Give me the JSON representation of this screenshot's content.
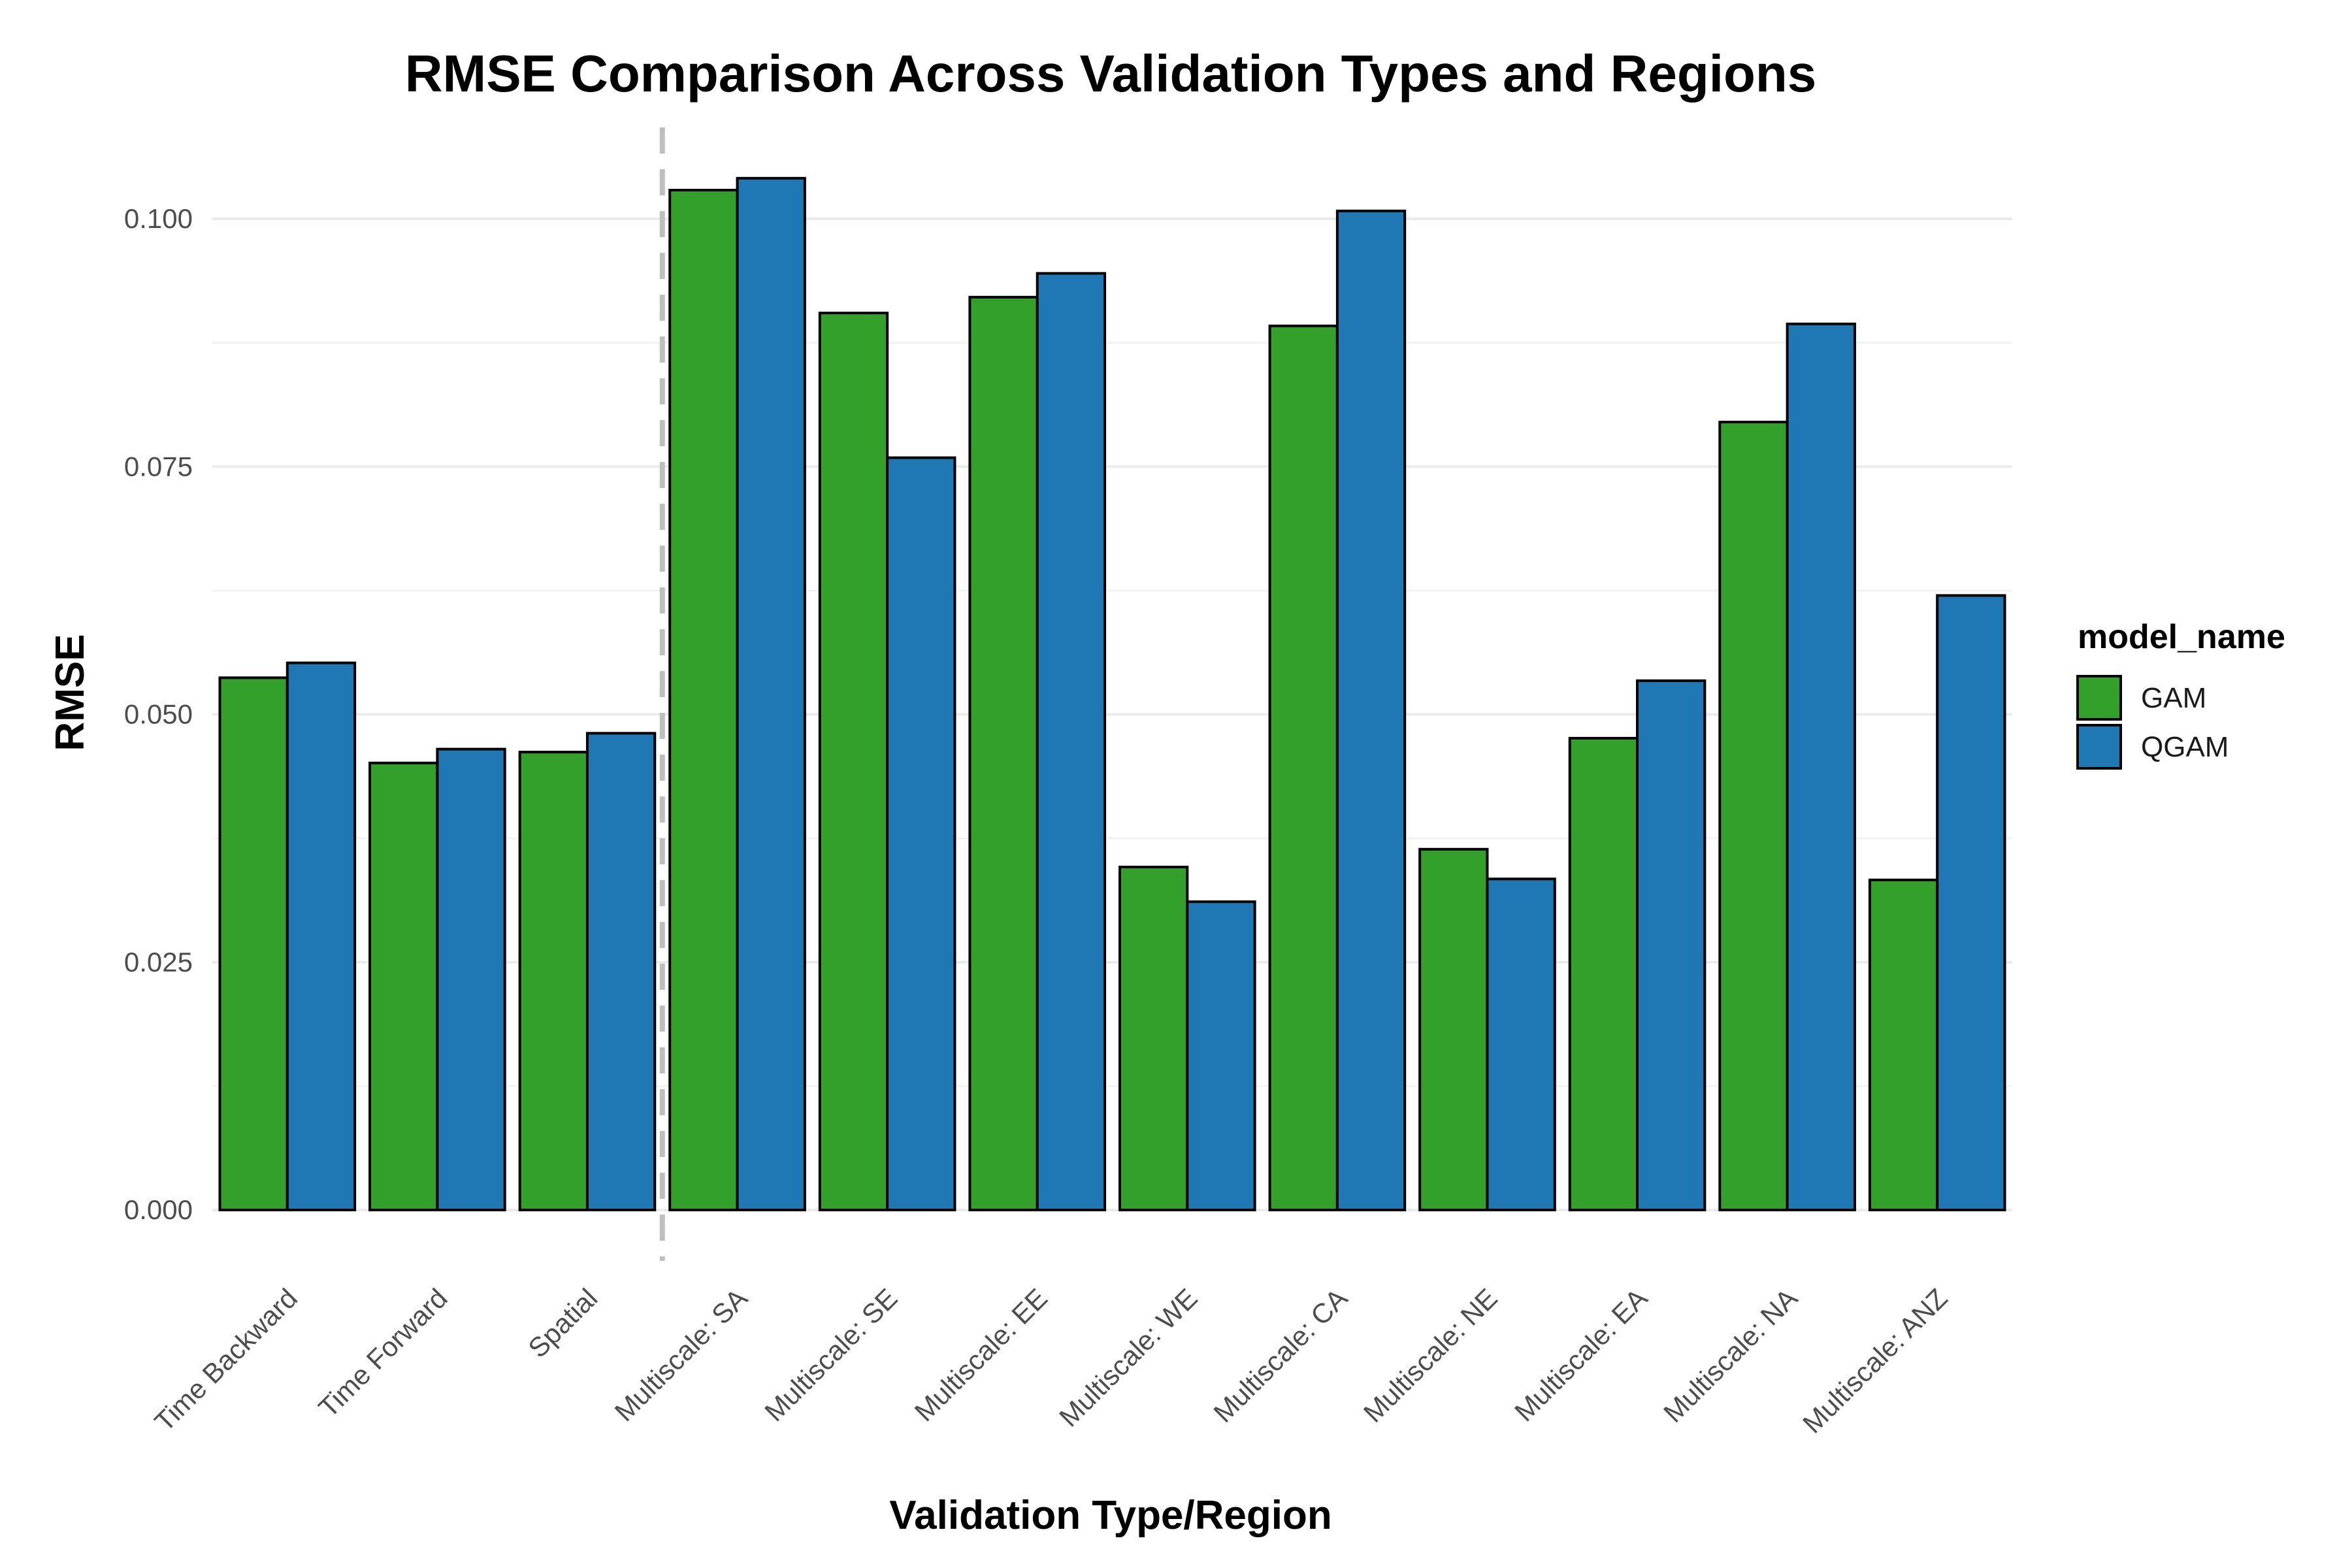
{
  "chart_data": {
    "type": "bar",
    "title": "RMSE Comparison Across Validation Types and Regions",
    "xlabel": "Validation Type/Region",
    "ylabel": "RMSE",
    "ylim": [
      0,
      0.1
    ],
    "yticks": [
      "0.000",
      "0.025",
      "0.050",
      "0.075",
      "0.100"
    ],
    "grid": true,
    "legend_title": "model_name",
    "legend_position": "right",
    "categories": [
      "Time Backward",
      "Time Forward",
      "Spatial",
      "Multiscale: SA",
      "Multiscale: SE",
      "Multiscale: EE",
      "Multiscale: WE",
      "Multiscale: CA",
      "Multiscale: NE",
      "Multiscale: EA",
      "Multiscale: NA",
      "Multiscale: ANZ"
    ],
    "series": [
      {
        "name": "GAM",
        "color": "#33a02c",
        "values": [
          0.0537,
          0.0451,
          0.0462,
          0.1029,
          0.0905,
          0.0921,
          0.0346,
          0.0892,
          0.0364,
          0.0476,
          0.0795,
          0.0333
        ]
      },
      {
        "name": "QGAM",
        "color": "#1f78b4",
        "values": [
          0.0552,
          0.0465,
          0.0481,
          0.1041,
          0.0759,
          0.0945,
          0.0311,
          0.1008,
          0.0334,
          0.0534,
          0.0894,
          0.062
        ]
      }
    ],
    "annotations": [
      {
        "type": "vline",
        "after_category": "Spatial",
        "style": "dashed"
      }
    ]
  }
}
